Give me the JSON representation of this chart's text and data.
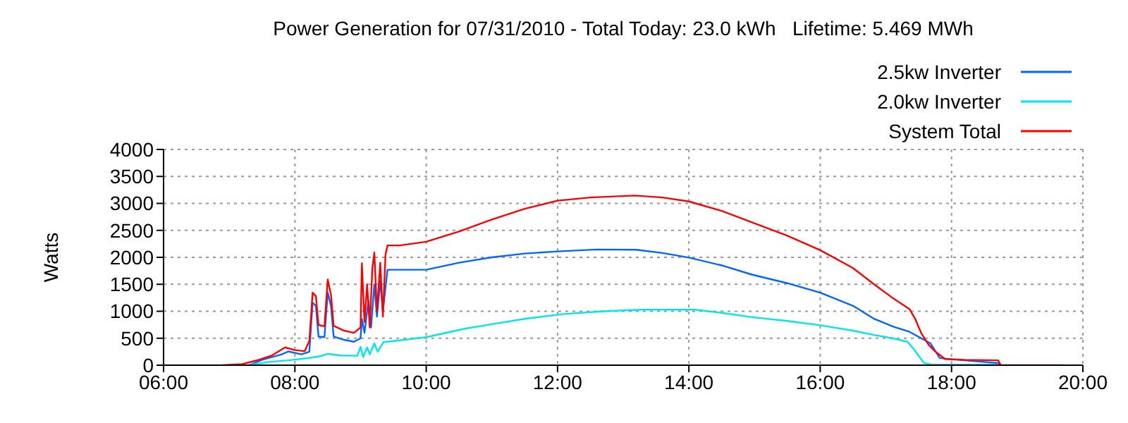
{
  "chart_data": {
    "type": "line",
    "title": "Power Generation for 07/31/2010 - Total Today: 23.0 kWh   Lifetime: 5.469 MWh",
    "ylabel": "Watts",
    "xlim": [
      6,
      20
    ],
    "xticks": [
      {
        "value": 6,
        "label": "06:00"
      },
      {
        "value": 8,
        "label": "08:00"
      },
      {
        "value": 10,
        "label": "10:00"
      },
      {
        "value": 12,
        "label": "12:00"
      },
      {
        "value": 14,
        "label": "14:00"
      },
      {
        "value": 16,
        "label": "16:00"
      },
      {
        "value": 18,
        "label": "18:00"
      },
      {
        "value": 20,
        "label": "20:00"
      }
    ],
    "ylim": [
      0,
      4000
    ],
    "yticks": [
      0,
      500,
      1000,
      1500,
      2000,
      2500,
      3000,
      3500,
      4000
    ],
    "grid": true,
    "legend": "top right",
    "marker": "none",
    "line_style": "solid",
    "series": [
      {
        "name": "2.5kw Inverter",
        "color": "#0066ff",
        "x": [
          7.3,
          7.5,
          7.8,
          7.9,
          8.1,
          8.22,
          8.27,
          8.32,
          8.36,
          8.45,
          8.5,
          8.55,
          8.59,
          8.75,
          8.9,
          9.0,
          9.02,
          9.06,
          9.12,
          9.16,
          9.21,
          9.25,
          9.3,
          9.34,
          9.41,
          10.0,
          10.5,
          11.0,
          11.5,
          12.0,
          12.6,
          13.2,
          13.6,
          14.0,
          14.5,
          14.96,
          15.5,
          16.0,
          16.5,
          16.82,
          17.1,
          17.36,
          17.68,
          17.82,
          18.0,
          18.71,
          18.75
        ],
        "values": [
          0,
          100,
          200,
          255,
          200,
          250,
          1160,
          1100,
          530,
          520,
          1345,
          1100,
          530,
          470,
          435,
          500,
          860,
          600,
          1200,
          700,
          1500,
          900,
          1560,
          1000,
          1770,
          1770,
          1900,
          2000,
          2070,
          2110,
          2145,
          2140,
          2080,
          1995,
          1850,
          1680,
          1520,
          1345,
          1100,
          860,
          720,
          618,
          405,
          133,
          110,
          40,
          0
        ]
      },
      {
        "name": "2.0kw Inverter",
        "color": "#00e5ee",
        "x": [
          7.3,
          7.6,
          7.9,
          8.2,
          8.4,
          8.5,
          8.7,
          8.95,
          9.0,
          9.04,
          9.1,
          9.14,
          9.21,
          9.26,
          9.35,
          9.41,
          10.0,
          10.6,
          11.0,
          11.5,
          12.1,
          12.7,
          13.3,
          14.1,
          14.5,
          14.96,
          15.5,
          16.0,
          16.5,
          16.82,
          17.1,
          17.33,
          17.43,
          17.58,
          17.7,
          18.7
        ],
        "values": [
          0,
          60,
          90,
          130,
          170,
          210,
          180,
          175,
          340,
          150,
          330,
          200,
          405,
          250,
          430,
          435,
          520,
          680,
          760,
          860,
          950,
          1000,
          1030,
          1030,
          970,
          890,
          820,
          740,
          640,
          560,
          500,
          435,
          290,
          40,
          10,
          10
        ]
      },
      {
        "name": "System Total",
        "color": "#ff0000",
        "x": [
          6.9,
          7.2,
          7.45,
          7.65,
          7.85,
          8.0,
          8.15,
          8.22,
          8.27,
          8.32,
          8.36,
          8.45,
          8.5,
          8.55,
          8.59,
          8.75,
          8.9,
          9.0,
          9.02,
          9.06,
          9.1,
          9.14,
          9.18,
          9.21,
          9.25,
          9.3,
          9.34,
          9.38,
          9.41,
          9.6,
          10.0,
          10.5,
          11.0,
          11.5,
          12.0,
          12.5,
          13.17,
          13.6,
          14.0,
          14.5,
          14.96,
          15.5,
          16.0,
          16.5,
          16.82,
          17.1,
          17.36,
          17.45,
          17.54,
          17.65,
          17.75,
          17.9,
          18.2,
          18.71,
          18.75,
          19.7
        ],
        "values": [
          0,
          20,
          100,
          180,
          330,
          280,
          260,
          450,
          1345,
          1280,
          745,
          720,
          1590,
          1300,
          730,
          640,
          600,
          700,
          1890,
          800,
          1500,
          700,
          1800,
          2090,
          1000,
          1900,
          900,
          2050,
          2220,
          2220,
          2290,
          2480,
          2700,
          2900,
          3050,
          3110,
          3145,
          3110,
          3036,
          2860,
          2650,
          2400,
          2133,
          1800,
          1500,
          1250,
          1040,
          850,
          590,
          380,
          255,
          115,
          100,
          90,
          0,
          0
        ]
      }
    ]
  }
}
